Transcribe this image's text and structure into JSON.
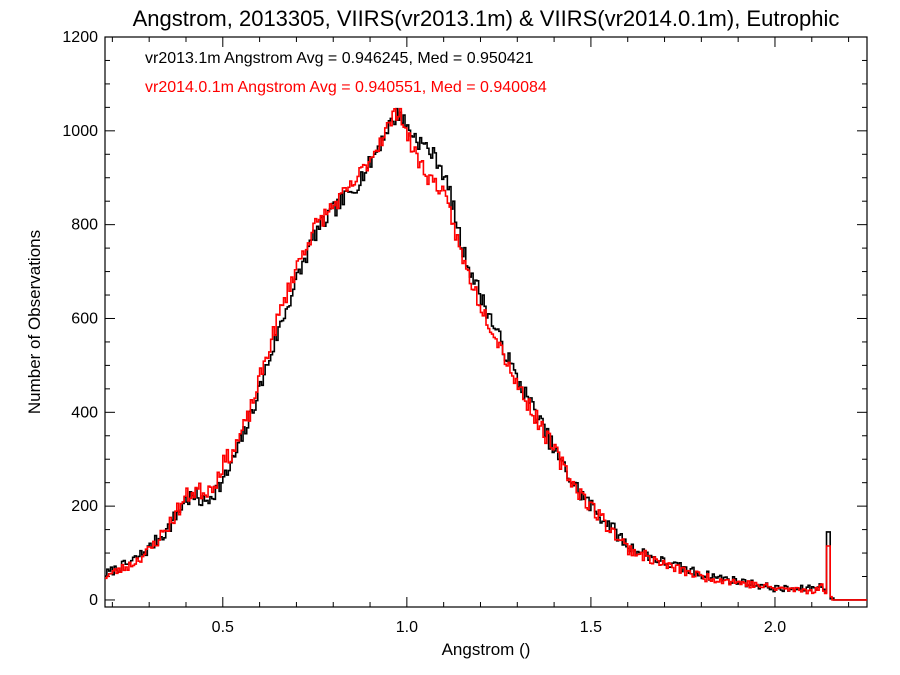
{
  "chart_data": {
    "type": "line",
    "title": "Angstrom, 2013305, VIIRS(vr2013.1m) & VIIRS(vr2014.0.1m), Eutrophic",
    "xlabel": "Angstrom ()",
    "ylabel": "Number of Observations",
    "xlim": [
      0.18,
      2.25
    ],
    "ylim": [
      -15,
      1200
    ],
    "x_ticks": [
      0.5,
      1.0,
      1.5,
      2.0
    ],
    "x_tick_labels": [
      "0.5",
      "1.0",
      "1.5",
      "2.0"
    ],
    "y_ticks": [
      0,
      200,
      400,
      600,
      800,
      1000,
      1200
    ],
    "y_tick_labels": [
      "0",
      "200",
      "400",
      "600",
      "800",
      "1000",
      "1200"
    ],
    "grid": false,
    "annotations": [
      {
        "text": "vr2013.1m Angstrom Avg = 0.946245, Med = 0.950421",
        "color": "#000000"
      },
      {
        "text": "vr2014.0.1m Angstrom Avg = 0.940551, Med = 0.940084",
        "color": "#ff0000"
      }
    ],
    "series": [
      {
        "color": "#000000",
        "style": "step",
        "noise": 18,
        "seed": 7,
        "points": [
          [
            0.18,
            55
          ],
          [
            0.25,
            80
          ],
          [
            0.3,
            110
          ],
          [
            0.35,
            150
          ],
          [
            0.4,
            215
          ],
          [
            0.43,
            220
          ],
          [
            0.45,
            205
          ],
          [
            0.48,
            235
          ],
          [
            0.5,
            250
          ],
          [
            0.53,
            300
          ],
          [
            0.57,
            380
          ],
          [
            0.6,
            450
          ],
          [
            0.65,
            570
          ],
          [
            0.7,
            680
          ],
          [
            0.75,
            780
          ],
          [
            0.8,
            830
          ],
          [
            0.85,
            870
          ],
          [
            0.9,
            930
          ],
          [
            0.95,
            1010
          ],
          [
            0.98,
            1040
          ],
          [
            1.0,
            1010
          ],
          [
            1.03,
            980
          ],
          [
            1.06,
            960
          ],
          [
            1.09,
            930
          ],
          [
            1.12,
            860
          ],
          [
            1.15,
            750
          ],
          [
            1.2,
            650
          ],
          [
            1.25,
            560
          ],
          [
            1.3,
            470
          ],
          [
            1.35,
            400
          ],
          [
            1.4,
            320
          ],
          [
            1.45,
            250
          ],
          [
            1.5,
            200
          ],
          [
            1.55,
            160
          ],
          [
            1.6,
            115
          ],
          [
            1.7,
            80
          ],
          [
            1.8,
            55
          ],
          [
            1.9,
            40
          ],
          [
            2.0,
            25
          ],
          [
            2.05,
            22
          ],
          [
            2.1,
            25
          ],
          [
            2.13,
            30
          ],
          [
            2.15,
            10
          ],
          [
            2.16,
            0
          ],
          [
            2.25,
            0
          ]
        ],
        "spikes": [
          [
            2.145,
            145
          ]
        ]
      },
      {
        "color": "#ff0000",
        "style": "step",
        "noise": 18,
        "seed": 23,
        "points": [
          [
            0.18,
            50
          ],
          [
            0.25,
            75
          ],
          [
            0.3,
            105
          ],
          [
            0.35,
            155
          ],
          [
            0.4,
            220
          ],
          [
            0.43,
            235
          ],
          [
            0.45,
            230
          ],
          [
            0.48,
            250
          ],
          [
            0.5,
            290
          ],
          [
            0.53,
            320
          ],
          [
            0.57,
            390
          ],
          [
            0.6,
            470
          ],
          [
            0.65,
            600
          ],
          [
            0.7,
            710
          ],
          [
            0.75,
            795
          ],
          [
            0.8,
            840
          ],
          [
            0.85,
            880
          ],
          [
            0.9,
            940
          ],
          [
            0.95,
            1010
          ],
          [
            0.98,
            1050
          ],
          [
            1.0,
            990
          ],
          [
            1.03,
            940
          ],
          [
            1.06,
            900
          ],
          [
            1.09,
            880
          ],
          [
            1.12,
            820
          ],
          [
            1.15,
            730
          ],
          [
            1.2,
            630
          ],
          [
            1.25,
            550
          ],
          [
            1.3,
            460
          ],
          [
            1.35,
            390
          ],
          [
            1.4,
            320
          ],
          [
            1.45,
            250
          ],
          [
            1.5,
            200
          ],
          [
            1.55,
            155
          ],
          [
            1.6,
            110
          ],
          [
            1.7,
            75
          ],
          [
            1.8,
            50
          ],
          [
            1.9,
            38
          ],
          [
            2.0,
            25
          ],
          [
            2.05,
            22
          ],
          [
            2.1,
            20
          ],
          [
            2.13,
            28
          ],
          [
            2.15,
            8
          ],
          [
            2.16,
            0
          ],
          [
            2.25,
            0
          ]
        ],
        "spikes": [
          [
            2.145,
            115
          ]
        ]
      }
    ]
  }
}
